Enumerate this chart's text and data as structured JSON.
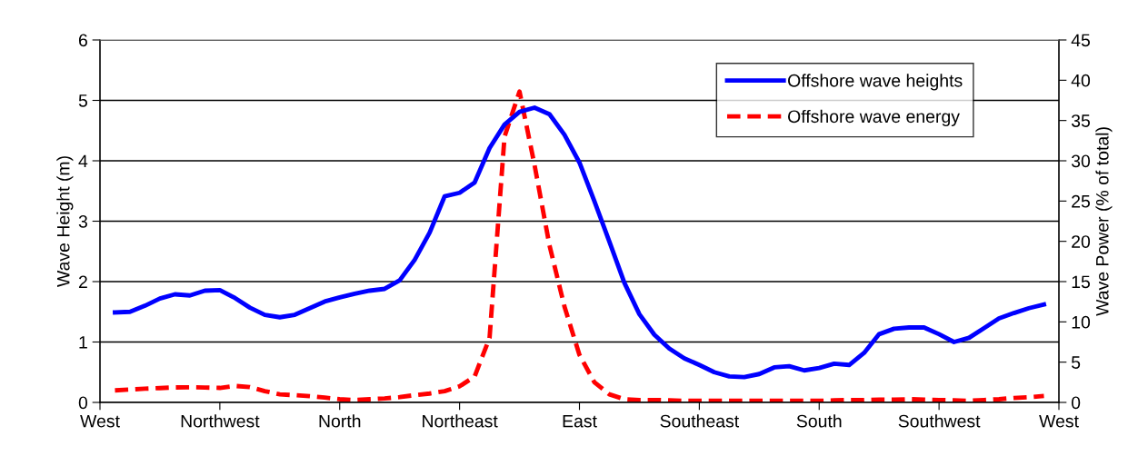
{
  "chart_data": {
    "type": "line",
    "ylabel": "Wave Height (m)",
    "y2label": "Wave Power (% of total)",
    "categories": [
      "West",
      null,
      null,
      null,
      null,
      null,
      null,
      null,
      "Northwest",
      null,
      null,
      null,
      null,
      null,
      null,
      null,
      "North",
      null,
      null,
      null,
      null,
      null,
      null,
      null,
      "Northeast",
      null,
      null,
      null,
      null,
      null,
      null,
      null,
      "East",
      null,
      null,
      null,
      null,
      null,
      null,
      null,
      "Southeast",
      null,
      null,
      null,
      null,
      null,
      null,
      null,
      "South",
      null,
      null,
      null,
      null,
      null,
      null,
      null,
      "Southwest",
      null,
      null,
      null,
      null,
      null,
      null,
      null,
      "West"
    ],
    "ylim": [
      0,
      6
    ],
    "yticks": [
      0,
      1,
      2,
      3,
      4,
      5,
      6
    ],
    "y2lim": [
      0,
      45
    ],
    "y2ticks": [
      0,
      5,
      10,
      15,
      20,
      25,
      30,
      35,
      40,
      45
    ],
    "grid": "y",
    "legend": "top right",
    "marker": "none",
    "series": [
      {
        "name": "Offshore wave heights",
        "color": "#0000ff",
        "line_style": "solid",
        "axis": "y",
        "values": [
          null,
          1.49,
          1.5,
          1.6,
          1.72,
          1.79,
          1.77,
          1.85,
          1.86,
          1.73,
          1.57,
          1.45,
          1.41,
          1.45,
          1.56,
          1.67,
          1.74,
          1.8,
          1.85,
          1.88,
          2.02,
          2.36,
          2.81,
          3.41,
          3.47,
          3.64,
          4.21,
          4.6,
          4.81,
          4.88,
          4.77,
          4.43,
          3.97,
          3.33,
          2.66,
          1.98,
          1.46,
          1.12,
          0.89,
          0.73,
          0.62,
          0.5,
          0.43,
          0.42,
          0.47,
          0.58,
          0.6,
          0.53,
          0.57,
          0.64,
          0.62,
          0.82,
          1.13,
          1.22,
          1.24,
          1.24,
          1.13,
          1.0,
          1.07,
          1.23,
          1.39,
          1.48,
          1.56,
          1.62,
          null
        ]
      },
      {
        "name": "Offshore wave energy",
        "color": "#ff0000",
        "line_style": "dashed",
        "axis": "y2",
        "values": [
          null,
          1.5,
          1.6,
          1.7,
          1.78,
          1.86,
          1.88,
          1.85,
          1.8,
          2.05,
          1.9,
          1.4,
          1.0,
          0.9,
          0.78,
          0.6,
          0.4,
          0.3,
          0.4,
          0.5,
          0.66,
          0.9,
          1.1,
          1.4,
          2.0,
          3.2,
          8.0,
          33,
          38.6,
          29.5,
          19.5,
          11.9,
          5.9,
          2.5,
          1.0,
          0.4,
          0.3,
          0.3,
          0.25,
          0.2,
          0.2,
          0.2,
          0.2,
          0.2,
          0.2,
          0.2,
          0.2,
          0.2,
          0.2,
          0.25,
          0.3,
          0.3,
          0.35,
          0.35,
          0.4,
          0.35,
          0.3,
          0.25,
          0.2,
          0.3,
          0.4,
          0.55,
          0.65,
          0.8,
          null
        ]
      }
    ]
  }
}
